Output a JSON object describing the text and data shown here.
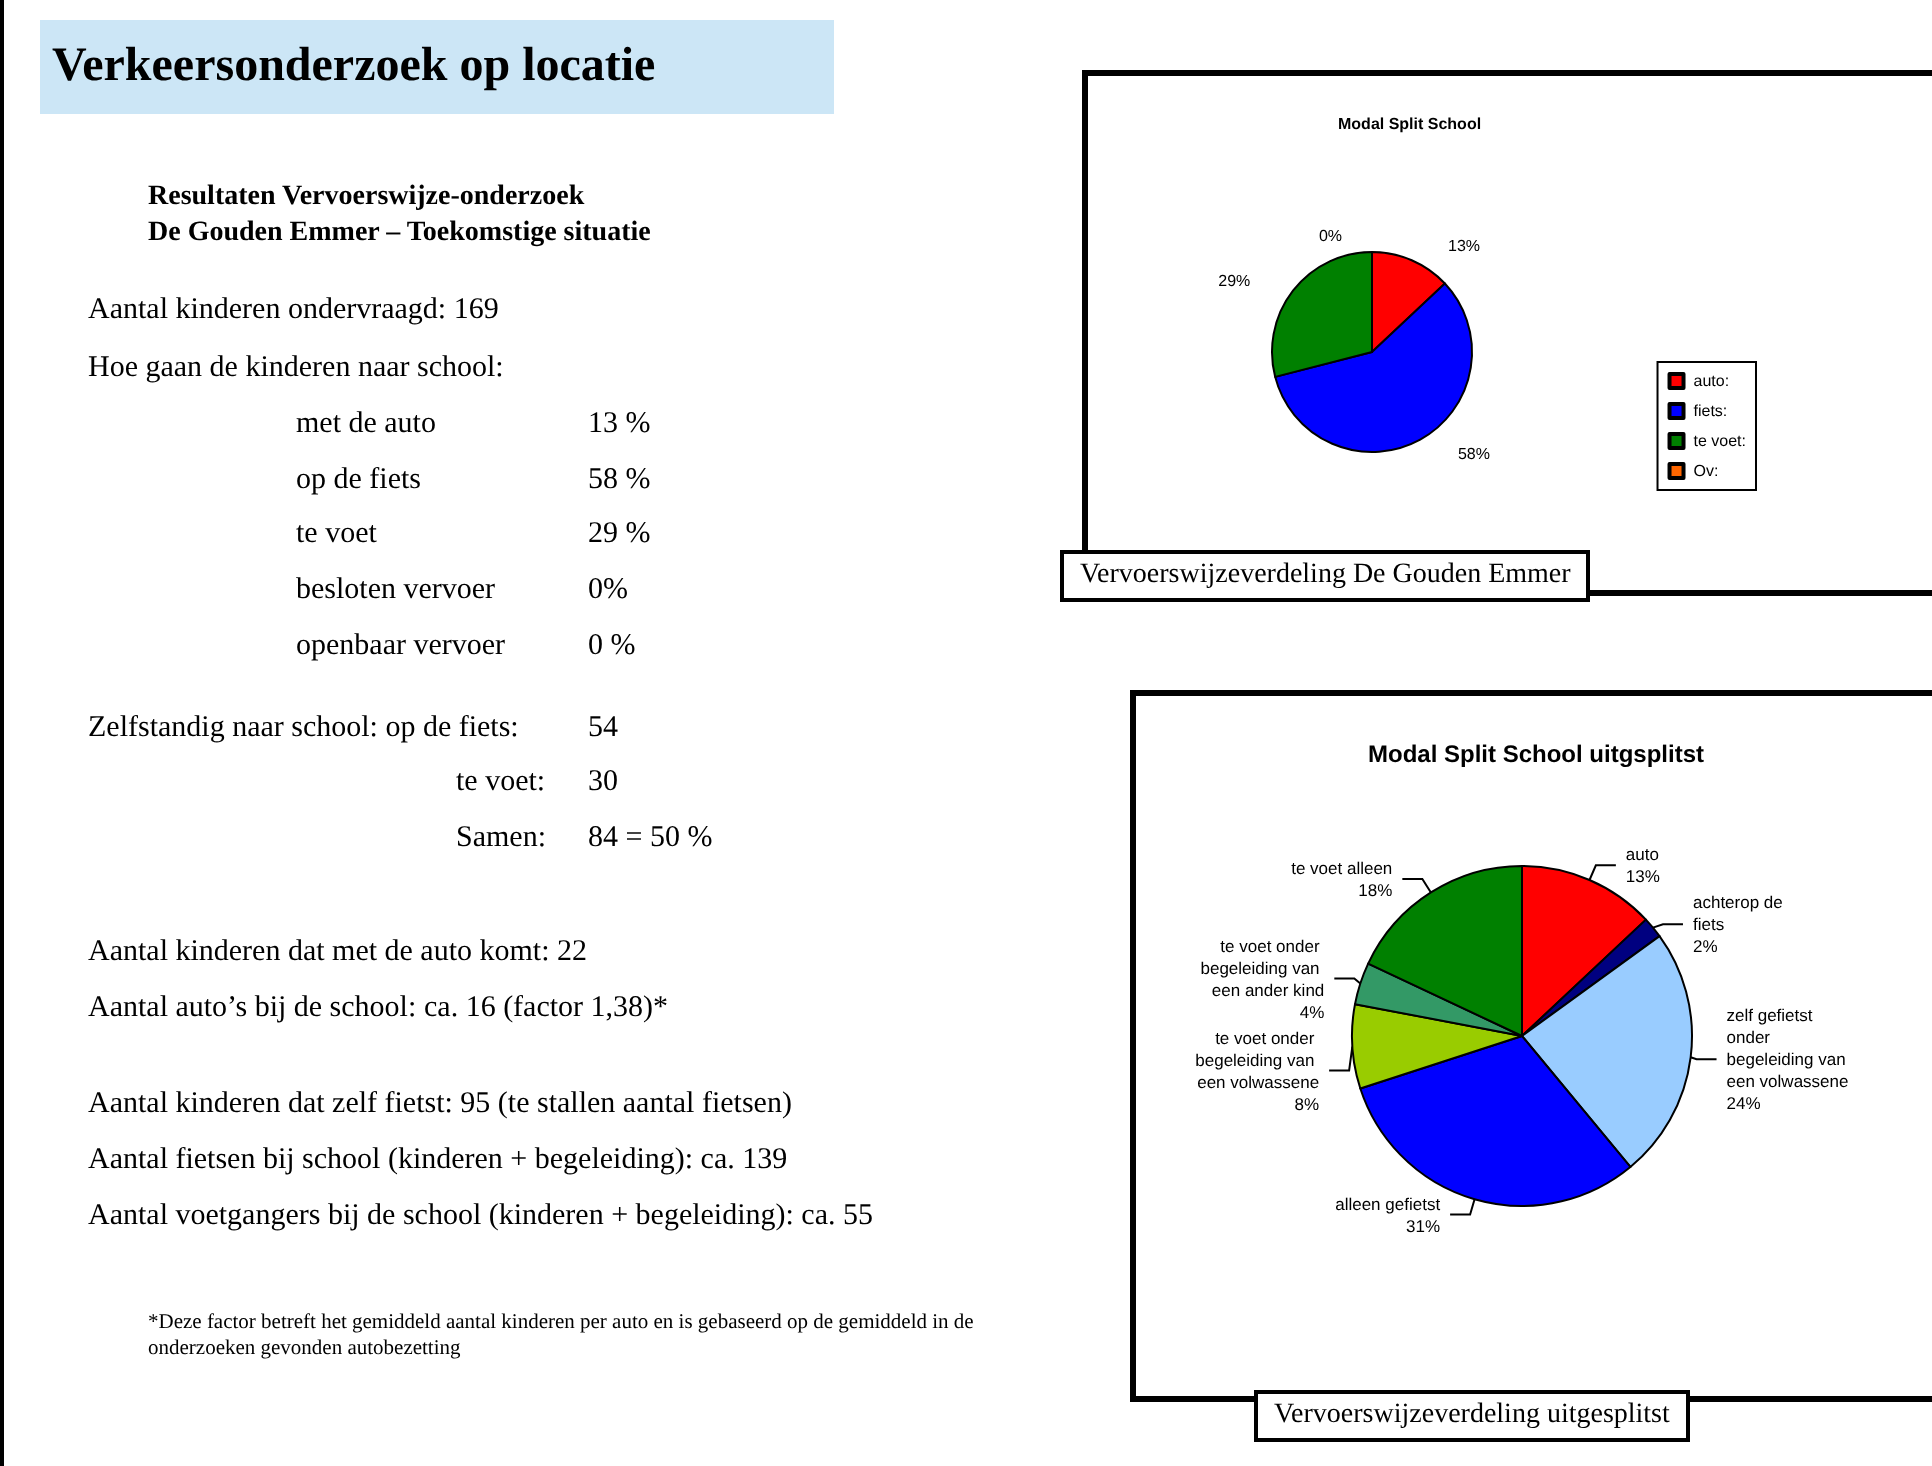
{
  "chart_data": [
    {
      "type": "other",
      "title": "Verkeersonderzoek op locatie",
      "subtitle": "Resultaten Vervoerswijze-onderzoek\nDe Gouden Emmer – Toekomstige situatie",
      "annotations": [
        "Aantal kinderen ondervraagd: 169",
        "Hoe gaan de kinderen naar school:",
        "met de auto",
        "13 %",
        "op de fiets",
        "58 %",
        "te voet",
        "29 %",
        "besloten vervoer",
        "0%",
        "openbaar vervoer",
        "0 %",
        "Zelfstandig naar school: op de fiets:",
        "54",
        "te voet:",
        "30",
        "Samen:",
        "84 = 50 %",
        "Aantal kinderen dat met de auto komt: 22",
        "Aantal auto’s bij de school:",
        "ca. 16 (factor 1,38)*",
        "Aantal kinderen dat zelf fietst: 95 (te stallen aantal fietsen)",
        "Aantal fietsen bij school (kinderen + begeleiding): ca. 139",
        "Aantal voetgangers bij de school (kinderen + begeleiding): ca. 55",
        "*Deze factor betreft het gemiddeld aantal kinderen per auto en is gebaseerd op de gemiddeld in de onderzoeken gevonden autobezetting"
      ]
    },
    {
      "type": "pie",
      "title": "Modal Split School",
      "categories": [
        "auto",
        "fiets",
        "te voet",
        "Ov"
      ],
      "values": [
        13,
        58,
        29,
        0
      ],
      "value_labels": [
        "13%",
        "58%",
        "29%",
        "0%"
      ],
      "colors": [
        "#ff0000",
        "#0000ff",
        "#008000",
        "#ff6600"
      ],
      "legend": "right",
      "annotations": [
        "Vervoerswijzeverdeling De Gouden Emmer",
        ":"
      ]
    },
    {
      "type": "pie",
      "title": "Modal Split School uitgsplitst",
      "categories": [
        "auto",
        "achterop de fiets",
        "zelf gefietst onder begeleiding van een volwassene",
        "alleen gefietst",
        "te voet onder begeleiding van een volwassene",
        "te voet onder begeleiding van een ander kind",
        "te voet alleen"
      ],
      "values": [
        13,
        2,
        24,
        31,
        8,
        4,
        18
      ],
      "value_labels": [
        "13%",
        "2%",
        "24%",
        "31%",
        "8%",
        "4%",
        "18%"
      ],
      "colors": [
        "#ff0000",
        "#000080",
        "#99ccff",
        "#0000ff",
        "#99cc00",
        "#339966",
        "#008000"
      ],
      "annotations": [
        "Vervoerswijzeverdeling uitgesplitst"
      ]
    }
  ]
}
